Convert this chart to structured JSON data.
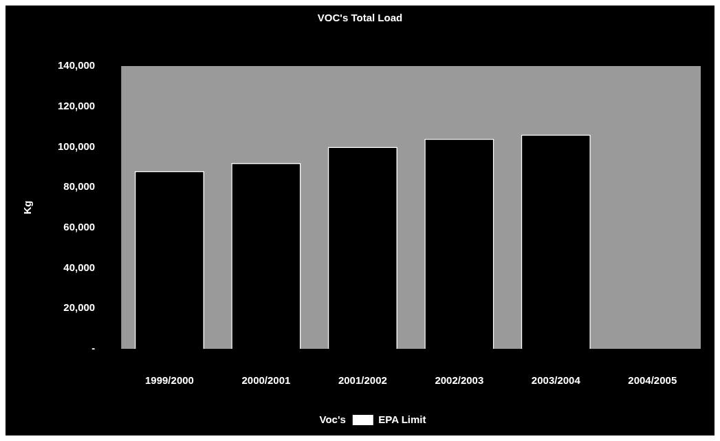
{
  "chart_data": {
    "type": "bar",
    "title": "VOC's Total Load",
    "ylabel": "Kg",
    "categories": [
      "1999/2000",
      "2000/2001",
      "2001/2002",
      "2002/2003",
      "2003/2004",
      "2004/2005"
    ],
    "series": [
      {
        "name": "Voc's",
        "color": "#000000",
        "values": [
          88000,
          92000,
          100000,
          104000,
          106000,
          null
        ]
      },
      {
        "name": "EPA Limit",
        "type": "line",
        "color": "#ffffff",
        "values": [
          null,
          null,
          null,
          null,
          null,
          null
        ]
      }
    ],
    "ylim": [
      0,
      140000
    ],
    "yticks": [
      {
        "value": 0,
        "label": "-"
      },
      {
        "value": 20000,
        "label": "20,000"
      },
      {
        "value": 40000,
        "label": "40,000"
      },
      {
        "value": 60000,
        "label": "60,000"
      },
      {
        "value": 80000,
        "label": "80,000"
      },
      {
        "value": 100000,
        "label": "100,000"
      },
      {
        "value": 120000,
        "label": "120,000"
      },
      {
        "value": 140000,
        "label": "140,000"
      }
    ],
    "legend": "bottom"
  }
}
